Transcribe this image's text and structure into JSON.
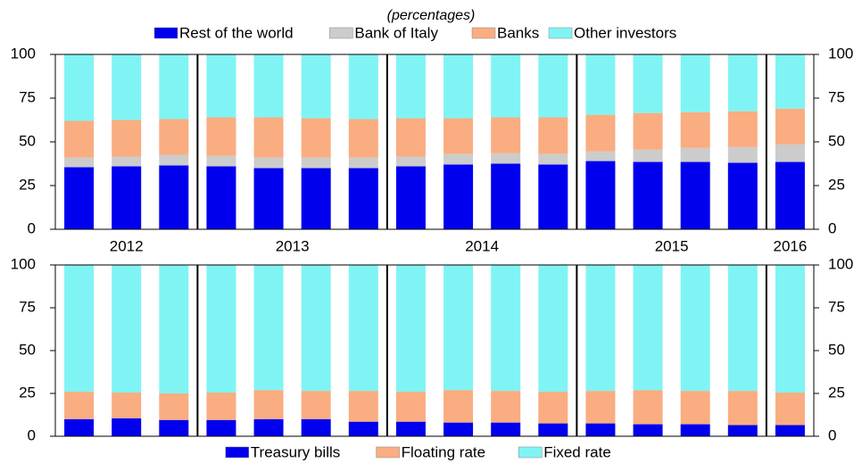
{
  "chart_data": [
    {
      "type": "stacked-bar",
      "subtitle": "(percentages)",
      "legend": "top",
      "categories": [
        "2012",
        null,
        null,
        "2013",
        null,
        null,
        null,
        "2014",
        null,
        null,
        null,
        "2015",
        null,
        null,
        null,
        "2016"
      ],
      "ylim": [
        0,
        100
      ],
      "yticks": [
        0,
        25,
        50,
        75,
        100
      ],
      "series": [
        {
          "name": "Rest of the world",
          "color": "#0000ee",
          "values": [
            35.5,
            36,
            36.5,
            36,
            35,
            35,
            35,
            36,
            37,
            37.5,
            37,
            39,
            38.5,
            38.5,
            38,
            38.5
          ]
        },
        {
          "name": "Bank of Italy",
          "color": "#cccccc",
          "values": [
            5.5,
            5.5,
            6,
            6,
            6,
            6,
            6,
            5.5,
            6,
            6,
            6,
            5.5,
            7,
            8,
            9,
            10
          ]
        },
        {
          "name": "Banks",
          "color": "#f9ad81",
          "values": [
            21,
            21,
            20.5,
            22,
            23,
            22.5,
            22,
            22,
            20.5,
            20.5,
            21,
            21,
            21,
            20.5,
            20.5,
            20.5
          ]
        },
        {
          "name": "Other investors",
          "color": "#80f4f4",
          "values": [
            38,
            37.5,
            37,
            36,
            36,
            36.5,
            37,
            36.5,
            36.5,
            36,
            36,
            34.5,
            33.5,
            33,
            32.5,
            31
          ]
        }
      ]
    },
    {
      "type": "stacked-bar",
      "legend": "bottom",
      "ylim": [
        0,
        100
      ],
      "yticks": [
        0,
        25,
        50,
        75,
        100
      ],
      "series": [
        {
          "name": "Treasury bills",
          "color": "#0000ee",
          "values": [
            10,
            10.5,
            9.5,
            9.5,
            10,
            10,
            8.5,
            8.5,
            8,
            8,
            7.5,
            7.5,
            7,
            7,
            6.5,
            6.5
          ]
        },
        {
          "name": "Floating rate",
          "color": "#f9ad81",
          "values": [
            16,
            15,
            15.5,
            16,
            17,
            16.5,
            18,
            17.5,
            19,
            18.5,
            18.5,
            19,
            20,
            19.5,
            20,
            19
          ]
        },
        {
          "name": "Fixed rate",
          "color": "#80f4f4",
          "values": [
            74,
            74.5,
            75,
            74.5,
            73,
            73.5,
            73.5,
            74,
            73,
            73.5,
            74,
            73.5,
            73,
            73.5,
            73.5,
            74.5
          ]
        }
      ]
    }
  ]
}
